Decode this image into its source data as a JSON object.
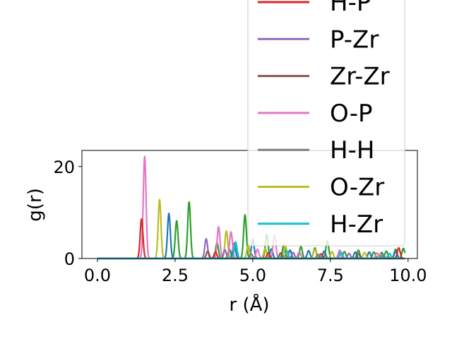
{
  "chart_data": {
    "type": "line",
    "title": "",
    "xlabel": "r (Å)",
    "ylabel": "g(r)",
    "xlim": [
      -0.5,
      10.3
    ],
    "ylim": [
      0,
      23.5
    ],
    "xticks": [
      0.0,
      2.5,
      5.0,
      7.5,
      10.0
    ],
    "xtick_labels": [
      "0.0",
      "2.5",
      "5.0",
      "7.5",
      "10.0"
    ],
    "yticks": [
      0,
      20
    ],
    "ytick_labels": [
      "0",
      "20"
    ],
    "grid": false,
    "legend_position": "top-right",
    "legend": [
      {
        "label": "H-P",
        "color": "#d62728"
      },
      {
        "label": "P-Zr",
        "color": "#9467bd"
      },
      {
        "label": "Zr-Zr",
        "color": "#8c564b"
      },
      {
        "label": "O-P",
        "color": "#e377c2"
      },
      {
        "label": "H-H",
        "color": "#7f7f7f"
      },
      {
        "label": "O-Zr",
        "color": "#bcbd22"
      },
      {
        "label": "H-Zr",
        "color": "#17becf"
      }
    ],
    "series": [
      {
        "color": "#2ca02c",
        "peaks": [
          [
            2.95,
            12.3
          ],
          [
            2.55,
            8.2
          ],
          [
            3.85,
            3.4
          ],
          [
            4.25,
            2.0
          ],
          [
            4.75,
            9.5
          ],
          [
            5.45,
            5.2
          ],
          [
            6.0,
            3.0
          ],
          [
            6.55,
            2.6
          ],
          [
            7.0,
            2.3
          ],
          [
            7.4,
            3.8
          ],
          [
            7.95,
            1.5
          ],
          [
            8.4,
            1.8
          ],
          [
            8.9,
            1.4
          ],
          [
            9.3,
            1.6
          ],
          [
            9.6,
            2.0
          ],
          [
            9.85,
            2.2
          ]
        ]
      },
      {
        "color": "#1f77b4",
        "peaks": [
          [
            2.3,
            9.8
          ],
          [
            4.4,
            3.3
          ],
          [
            5.0,
            4.2
          ],
          [
            5.6,
            2.1
          ],
          [
            6.2,
            1.8
          ],
          [
            6.8,
            1.7
          ],
          [
            7.3,
            1.6
          ],
          [
            7.8,
            1.5
          ],
          [
            8.3,
            1.4
          ],
          [
            8.75,
            1.4
          ],
          [
            9.15,
            1.3
          ],
          [
            9.6,
            1.5
          ]
        ]
      },
      {
        "color": "#bcbd22",
        "peaks": [
          [
            2.0,
            12.8
          ],
          [
            4.15,
            6.0
          ],
          [
            4.85,
            2.8
          ],
          [
            5.4,
            2.2
          ],
          [
            6.05,
            2.7
          ],
          [
            7.0,
            2.0
          ],
          [
            7.55,
            1.5
          ],
          [
            8.6,
            1.3
          ],
          [
            9.1,
            1.0
          ]
        ]
      },
      {
        "color": "#e377c2",
        "peaks": [
          [
            1.52,
            22.2
          ],
          [
            3.9,
            6.9
          ],
          [
            4.3,
            5.8
          ],
          [
            5.15,
            2.0
          ],
          [
            5.7,
            5.1
          ],
          [
            6.5,
            1.5
          ],
          [
            7.8,
            1.8
          ],
          [
            9.0,
            1.2
          ]
        ]
      },
      {
        "color": "#d62728",
        "peaks": [
          [
            1.42,
            8.6
          ],
          [
            3.8,
            1.4
          ],
          [
            5.5,
            1.2
          ],
          [
            7.2,
            1.0
          ],
          [
            9.7,
            2.3
          ]
        ]
      },
      {
        "color": "#9467bd",
        "peaks": [
          [
            3.5,
            4.3
          ],
          [
            4.1,
            1.9
          ],
          [
            6.3,
            1.3
          ],
          [
            8.1,
            1.1
          ]
        ]
      },
      {
        "color": "#8c564b",
        "peaks": [
          [
            3.55,
            1.6
          ],
          [
            5.9,
            1.2
          ],
          [
            8.4,
            1.0
          ]
        ]
      },
      {
        "color": "#7f7f7f",
        "peaks": [
          [
            4.95,
            1.0
          ],
          [
            7.1,
            0.9
          ],
          [
            9.2,
            0.8
          ]
        ]
      },
      {
        "color": "#17becf",
        "peaks": [
          [
            4.45,
            3.6
          ],
          [
            6.1,
            1.6
          ],
          [
            7.85,
            1.3
          ],
          [
            9.4,
            1.1
          ]
        ]
      }
    ]
  }
}
